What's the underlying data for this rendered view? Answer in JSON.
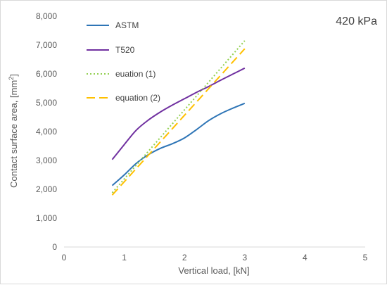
{
  "chart_data": {
    "type": "line",
    "xlabel": "Vertical load, [kN]",
    "ylabel": "Contact surface area, [mm²]",
    "ylabel_base": "Contact surface area, [mm",
    "ylabel_sup": "2",
    "ylabel_tail": "]",
    "annotation": "420 kPa",
    "xlim": [
      0,
      5
    ],
    "ylim": [
      0,
      8000
    ],
    "x_ticks": [
      0,
      1,
      2,
      3,
      4,
      5
    ],
    "x_tick_labels": [
      "0",
      "1",
      "2",
      "3",
      "4",
      "5"
    ],
    "y_ticks": [
      0,
      1000,
      2000,
      3000,
      4000,
      5000,
      6000,
      7000,
      8000
    ],
    "y_tick_labels": [
      "0",
      "1,000",
      "2,000",
      "3,000",
      "4,000",
      "5,000",
      "6,000",
      "7,000",
      "8,000"
    ],
    "grid": false,
    "legend_position": "top-left",
    "series": [
      {
        "name": "ASTM",
        "color": "#2E75B6",
        "style": "solid",
        "x": [
          0.8,
          1.0,
          1.2,
          1.4,
          1.6,
          1.8,
          2.0,
          2.2,
          2.4,
          2.6,
          2.8,
          3.0
        ],
        "y": [
          2130,
          2500,
          2900,
          3200,
          3420,
          3580,
          3780,
          4070,
          4380,
          4620,
          4810,
          4980
        ]
      },
      {
        "name": "T520",
        "color": "#7030A0",
        "style": "solid",
        "x": [
          0.8,
          1.0,
          1.2,
          1.4,
          1.6,
          1.8,
          2.0,
          2.2,
          2.4,
          2.6,
          2.8,
          3.0
        ],
        "y": [
          3030,
          3550,
          4050,
          4400,
          4680,
          4920,
          5140,
          5360,
          5560,
          5780,
          5990,
          6200
        ]
      },
      {
        "name": "euation (1)",
        "color": "#92D050",
        "style": "dotted",
        "x": [
          0.8,
          3.0
        ],
        "y": [
          1880,
          7150
        ]
      },
      {
        "name": "equation (2)",
        "color": "#FFC000",
        "style": "dashed",
        "x": [
          0.8,
          3.0
        ],
        "y": [
          1800,
          6870
        ]
      }
    ]
  }
}
